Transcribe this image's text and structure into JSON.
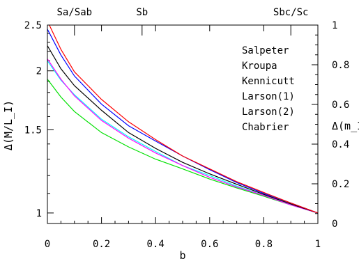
{
  "chart_data": {
    "type": "line",
    "xlabel": "b",
    "ylabel": "Δ(M/L_I)",
    "y2label": "Δ(m_I)",
    "xlim": [
      0,
      1
    ],
    "ylim": [
      0.95,
      2.5
    ],
    "yscale": "log",
    "y2lim": [
      0,
      1
    ],
    "x_ticks": [
      "0",
      "0.2",
      "0.4",
      "0.6",
      "0.8",
      "1"
    ],
    "y_ticks": [
      "1",
      "1.5",
      "2",
      "2.5"
    ],
    "y2_ticks": [
      "0",
      "0.2",
      "0.4",
      "0.6",
      "0.8",
      "1"
    ],
    "top_axis": [
      {
        "label": "Sa/Sab",
        "x": 0.1
      },
      {
        "label": "Sb",
        "x": 0.35
      },
      {
        "label": "Sbc/Sc",
        "x": 0.9
      }
    ],
    "legend_position": "top-right",
    "grid": false,
    "x": [
      0,
      0.05,
      0.1,
      0.2,
      0.3,
      0.4,
      0.5,
      0.6,
      0.7,
      0.8,
      0.9,
      1.0
    ],
    "series": [
      {
        "name": "Salpeter",
        "color": "#000000",
        "values": [
          2.26,
          2.02,
          1.86,
          1.65,
          1.48,
          1.37,
          1.28,
          1.21,
          1.15,
          1.095,
          1.045,
          1.0
        ]
      },
      {
        "name": "Kroupa",
        "color": "#00e000",
        "values": [
          1.92,
          1.76,
          1.64,
          1.48,
          1.38,
          1.3,
          1.24,
          1.18,
          1.13,
          1.085,
          1.04,
          1.0
        ]
      },
      {
        "name": "Kennicutt",
        "color": "#00ffff",
        "values": [
          2.1,
          1.91,
          1.78,
          1.58,
          1.45,
          1.35,
          1.26,
          1.2,
          1.14,
          1.09,
          1.04,
          1.0
        ]
      },
      {
        "name": "Larson(1)",
        "color": "#ff0000",
        "values": [
          2.55,
          2.22,
          1.99,
          1.74,
          1.56,
          1.43,
          1.32,
          1.24,
          1.165,
          1.105,
          1.05,
          1.0
        ]
      },
      {
        "name": "Larson(2)",
        "color": "#ff00ff",
        "values": [
          2.12,
          1.92,
          1.77,
          1.57,
          1.44,
          1.34,
          1.26,
          1.19,
          1.135,
          1.09,
          1.04,
          1.0
        ]
      },
      {
        "name": "Chabrier",
        "color": "#0000ff",
        "values": [
          2.45,
          2.16,
          1.95,
          1.7,
          1.53,
          1.42,
          1.32,
          1.235,
          1.16,
          1.1,
          1.05,
          1.0
        ]
      }
    ]
  }
}
